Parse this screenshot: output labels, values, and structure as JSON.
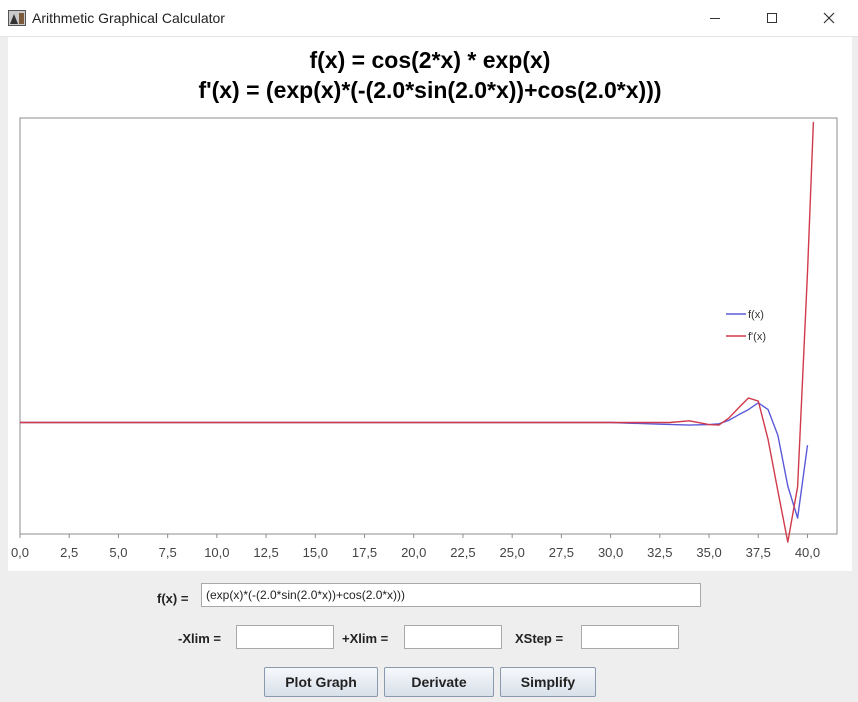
{
  "window": {
    "title": "Arithmetic Graphical Calculator",
    "icons": {
      "app": "calculator-app-icon",
      "minimize": "minimize-icon",
      "maximize": "maximize-icon",
      "close": "close-icon"
    }
  },
  "chart_data": {
    "type": "line",
    "title": "f(x) = cos(2*x) * exp(x)",
    "subtitle": "f'(x) = (exp(x)*(-(2.0*sin(2.0*x))+cos(2.0*x)))",
    "xlim": [
      0,
      41.5
    ],
    "ylim": [
      -2.6e+17,
      7.1e+17
    ],
    "x_ticks": [
      "0,0",
      "2,5",
      "5,0",
      "7,5",
      "10,0",
      "12,5",
      "15,0",
      "17,5",
      "20,0",
      "22,5",
      "25,0",
      "27,5",
      "30,0",
      "32,5",
      "35,0",
      "37,5",
      "40,0"
    ],
    "grid": false,
    "legend_position": "right",
    "series": [
      {
        "name": "f(x)",
        "color": "#5a5ad8",
        "x": [
          0,
          30,
          32.5,
          34,
          35,
          35.5,
          36,
          36.5,
          37,
          37.5,
          38,
          38.5,
          39,
          39.5,
          40
        ],
        "y": [
          0,
          0,
          -4000000000000000.0,
          -6000000000000000.0,
          -5000000000000000.0,
          -3000000000000000.0,
          5000000000000000.0,
          1.8e+16,
          3e+16,
          4.6e+16,
          3e+16,
          -3e+16,
          -1.48e+17,
          -2.23e+17,
          -5.3e+16
        ]
      },
      {
        "name": "f'(x)",
        "color": "#d03a4a",
        "x": [
          0,
          33,
          34,
          35,
          35.5,
          36,
          36.5,
          37,
          37.5,
          38,
          38.5,
          39,
          39.5,
          40,
          40.3
        ],
        "y": [
          0,
          0,
          4000000000000000.0,
          -5000000000000000.0,
          -6000000000000000.0,
          1e+16,
          3.4e+16,
          5.7e+16,
          5e+16,
          -4e+16,
          -1.6e+17,
          -2.79e+17,
          -1.5e+17,
          3.5e+17,
          7.01e+17
        ]
      }
    ]
  },
  "form": {
    "fx_label": "f(x) =",
    "fx_value": "(exp(x)*(-(2.0*sin(2.0*x))+cos(2.0*x)))",
    "xlim_min_label": "-Xlim =",
    "xlim_min_value": "",
    "xlim_max_label": "+Xlim =",
    "xlim_max_value": "",
    "xstep_label": "XStep =",
    "xstep_value": ""
  },
  "buttons": {
    "plot": "Plot Graph",
    "derivate": "Derivate",
    "simplify": "Simplify"
  }
}
